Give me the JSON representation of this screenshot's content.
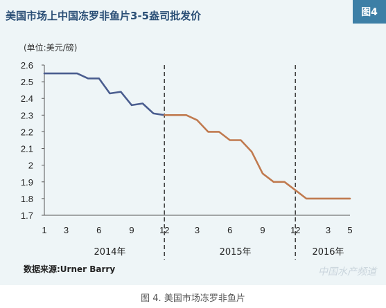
{
  "badge": "图4",
  "caption": "图 4. 美国市场冻罗非鱼片",
  "watermark": "中国水产频道",
  "chart_data": {
    "type": "line",
    "title": "美国市场上中国冻罗非鱼片3-5盎司批发价",
    "unit_label": "(单位:美元/磅)",
    "source": "数据来源:Urner Barry",
    "ylim": [
      1.7,
      2.6
    ],
    "yticks": [
      "1.7",
      "1.8",
      "1.9",
      "2",
      "2.1",
      "2.2",
      "2.3",
      "2.4",
      "2.5",
      "2.6"
    ],
    "x_tick_labels": [
      "1",
      "3",
      "6",
      "9",
      "12",
      "3",
      "6",
      "9",
      "12",
      "3",
      "5"
    ],
    "x_tick_index": [
      0,
      2,
      5,
      8,
      11,
      14,
      17,
      20,
      23,
      26,
      28
    ],
    "years": [
      {
        "label": "2014年",
        "center_index": 6
      },
      {
        "label": "2015年",
        "center_index": 17.5
      },
      {
        "label": "2016年",
        "center_index": 26
      }
    ],
    "separators_index": [
      11,
      23
    ],
    "series": [
      {
        "color": "#4a5d8f",
        "x_index": [
          0,
          1,
          2,
          3,
          4,
          5,
          6,
          7,
          8,
          9,
          10,
          11
        ],
        "values": [
          2.55,
          2.55,
          2.55,
          2.55,
          2.52,
          2.52,
          2.43,
          2.44,
          2.36,
          2.37,
          2.31,
          2.3
        ]
      },
      {
        "color": "#c07a4f",
        "x_index": [
          11,
          12,
          13,
          14,
          15,
          16,
          17,
          18,
          19,
          20,
          21,
          22,
          23,
          24,
          25,
          26,
          27,
          28
        ],
        "values": [
          2.3,
          2.3,
          2.3,
          2.27,
          2.2,
          2.2,
          2.15,
          2.15,
          2.08,
          1.95,
          1.9,
          1.9,
          1.85,
          1.8,
          1.8,
          1.8,
          1.8,
          1.8
        ]
      }
    ],
    "grid": false,
    "legend": "none"
  }
}
